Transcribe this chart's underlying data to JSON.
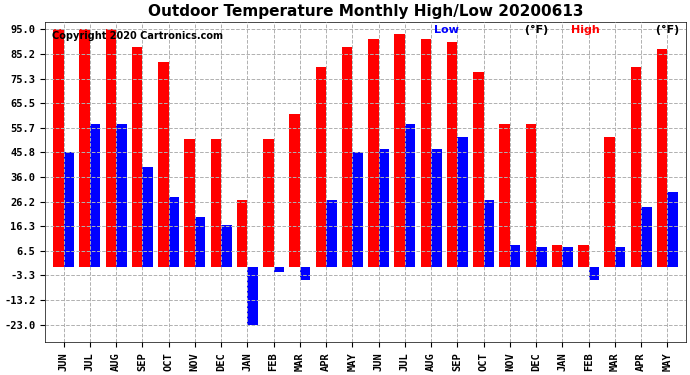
{
  "title": "Outdoor Temperature Monthly High/Low 20200613",
  "copyright": "Copyright 2020 Cartronics.com",
  "legend_low_label": "Low",
  "legend_high_label": "High",
  "legend_unit": " (°F)",
  "months": [
    "JUN",
    "JUL",
    "AUG",
    "SEP",
    "OCT",
    "NOV",
    "DEC",
    "JAN",
    "FEB",
    "MAR",
    "APR",
    "MAY",
    "JUN",
    "JUL",
    "AUG",
    "SEP",
    "OCT",
    "NOV",
    "DEC",
    "JAN",
    "FEB",
    "MAR",
    "APR",
    "MAY"
  ],
  "high_values": [
    95,
    95,
    95,
    88,
    82,
    51,
    51,
    27,
    51,
    61,
    80,
    88,
    91,
    93,
    91,
    90,
    78,
    57,
    57,
    9,
    9,
    52,
    80,
    87
  ],
  "low_values": [
    46,
    57,
    57,
    40,
    28,
    20,
    17,
    -23,
    -2,
    -5,
    27,
    46,
    47,
    57,
    47,
    52,
    27,
    9,
    8,
    8,
    -5,
    8,
    24,
    30
  ],
  "yticks": [
    -23.0,
    -13.2,
    -3.3,
    6.5,
    16.3,
    26.2,
    36.0,
    45.8,
    55.7,
    65.5,
    75.3,
    85.2,
    95.0
  ],
  "ymin": -30,
  "ymax": 98,
  "bar_color_high": "#ff0000",
  "bar_color_low": "#0000ff",
  "background_color": "#ffffff",
  "grid_color": "#b0b0b0",
  "title_fontsize": 11,
  "copyright_fontsize": 7,
  "legend_fontsize": 8,
  "tick_fontsize": 7.5,
  "bar_width": 0.4
}
